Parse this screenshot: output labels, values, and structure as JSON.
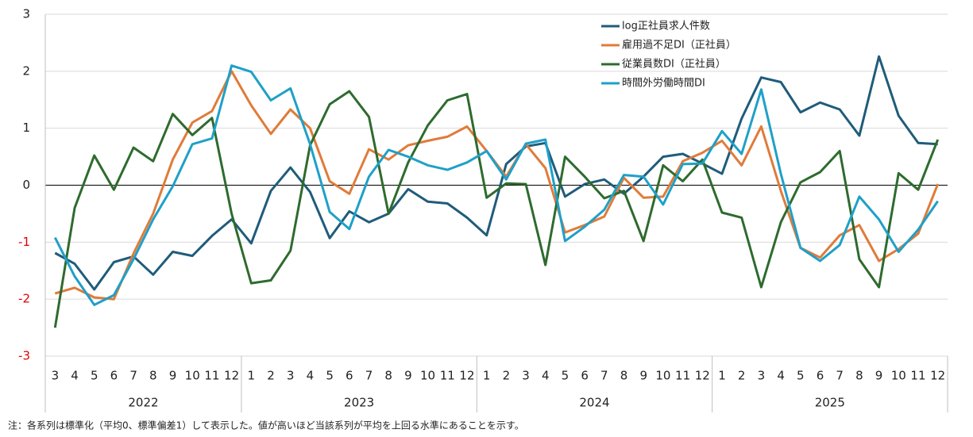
{
  "chart_data": {
    "type": "line",
    "categories": [
      "3",
      "4",
      "5",
      "6",
      "7",
      "8",
      "9",
      "10",
      "11",
      "12",
      "1",
      "2",
      "3",
      "4",
      "5",
      "6",
      "7",
      "8",
      "9",
      "10",
      "11",
      "12",
      "1",
      "2",
      "3",
      "4",
      "5",
      "6",
      "7",
      "8",
      "9",
      "10",
      "11",
      "12",
      "1",
      "2",
      "3",
      "4",
      "5",
      "6",
      "7",
      "8",
      "9",
      "10",
      "11",
      "12"
    ],
    "years": [
      "2022",
      "2023",
      "2024",
      "2025"
    ],
    "series": [
      {
        "name": "log正社員求人件数",
        "color": "#1f5c7a",
        "values": [
          -1.19,
          -1.38,
          -1.83,
          -1.35,
          -1.25,
          -1.57,
          -1.17,
          -1.24,
          -0.89,
          -0.6,
          -1.02,
          -0.1,
          0.31,
          -0.12,
          -0.93,
          -0.46,
          -0.65,
          -0.5,
          -0.07,
          -0.29,
          -0.32,
          -0.57,
          -0.88,
          0.37,
          0.68,
          0.74,
          -0.2,
          0.02,
          0.1,
          -0.15,
          0.15,
          0.5,
          0.55,
          0.38,
          0.2,
          1.17,
          1.89,
          1.81,
          1.28,
          1.45,
          1.33,
          0.87,
          2.26,
          1.22,
          0.74,
          0.72
        ]
      },
      {
        "name": "雇用過不足DI（正社員）",
        "color": "#e07b39",
        "values": [
          -1.9,
          -1.8,
          -1.97,
          -2.0,
          -1.2,
          -0.5,
          0.45,
          1.1,
          1.3,
          2.0,
          1.4,
          0.9,
          1.33,
          1.0,
          0.07,
          -0.15,
          0.63,
          0.45,
          0.7,
          0.78,
          0.85,
          1.03,
          0.6,
          0.15,
          0.72,
          0.3,
          -0.83,
          -0.7,
          -0.55,
          0.13,
          -0.22,
          -0.2,
          0.42,
          0.57,
          0.78,
          0.35,
          1.03,
          -0.1,
          -1.1,
          -1.27,
          -0.88,
          -0.7,
          -1.33,
          -1.12,
          -0.85,
          0.02
        ]
      },
      {
        "name": "従業員数DI（正社員）",
        "color": "#2e6b2e",
        "values": [
          -2.5,
          -0.4,
          0.52,
          -0.08,
          0.66,
          0.42,
          1.25,
          0.88,
          1.18,
          -0.5,
          -1.72,
          -1.67,
          -1.15,
          0.7,
          1.42,
          1.65,
          1.2,
          -0.5,
          0.4,
          1.05,
          1.49,
          1.6,
          -0.22,
          0.03,
          0.02,
          -1.4,
          0.5,
          0.15,
          -0.23,
          -0.1,
          -0.98,
          0.35,
          0.07,
          0.45,
          -0.48,
          -0.57,
          -1.79,
          -0.65,
          0.05,
          0.23,
          0.6,
          -1.3,
          -1.79,
          0.21,
          -0.08,
          0.8
        ]
      },
      {
        "name": "時間外労働時間DI",
        "color": "#1fa0c8",
        "values": [
          -0.92,
          -1.6,
          -2.1,
          -1.93,
          -1.3,
          -0.6,
          -0.02,
          0.72,
          0.82,
          2.1,
          1.99,
          1.49,
          1.7,
          0.72,
          -0.47,
          -0.77,
          0.15,
          0.62,
          0.5,
          0.35,
          0.27,
          0.4,
          0.6,
          0.1,
          0.73,
          0.8,
          -0.98,
          -0.73,
          -0.43,
          0.18,
          0.15,
          -0.34,
          0.37,
          0.38,
          0.95,
          0.55,
          1.68,
          0.2,
          -1.1,
          -1.33,
          -1.05,
          -0.2,
          -0.6,
          -1.17,
          -0.78,
          -0.28
        ]
      }
    ],
    "ylim": [
      -3,
      3
    ],
    "yticks": [
      -3,
      -2,
      -1,
      0,
      1,
      2,
      3
    ],
    "grid": true,
    "zero_line": true,
    "negative_tick_color": "#e00000",
    "legend_position": "top",
    "note": "注：各系列は標準化（平均0、標準偏差1）して表示した。値が高いほど当該系列が平均を上回る水準にあることを示す。"
  }
}
